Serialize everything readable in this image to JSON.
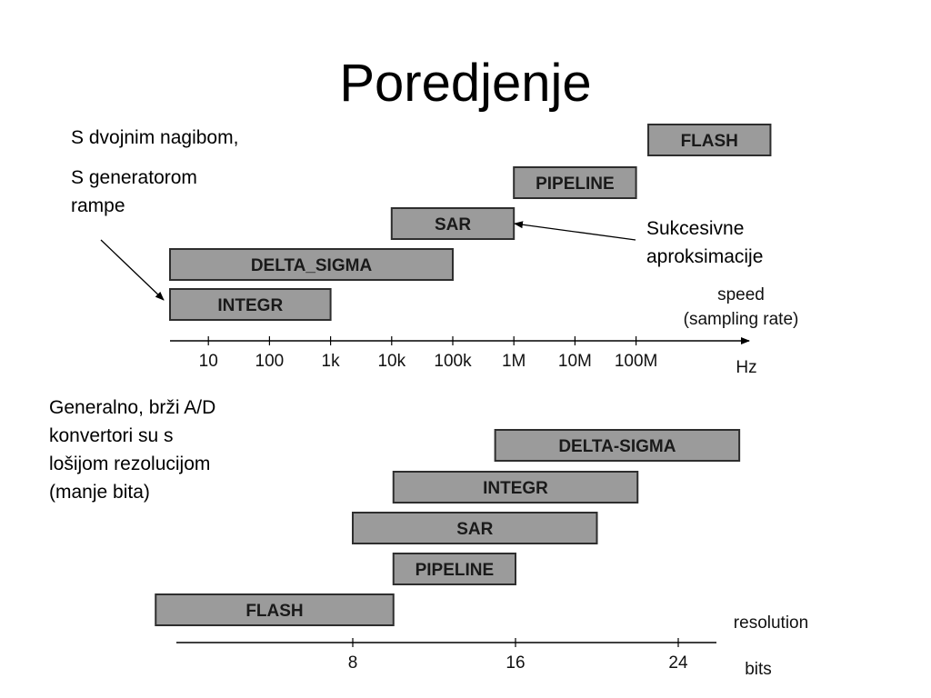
{
  "slide": {
    "title": "Poredjenje",
    "note_left_1": "S dvojnim nagibom,",
    "note_left_2a": "S generatorom",
    "note_left_2b": "rampe",
    "note_right_1": "Sukcesivne",
    "note_right_2": "aproksimacije",
    "note_bottom_1": "Generalno, brži A/D",
    "note_bottom_2": "konvertori su s",
    "note_bottom_3": "lošijom rezolucijom",
    "note_bottom_4": "(manje bita)"
  },
  "speed_chart": {
    "axis_label_1": "speed",
    "axis_label_2": "(sampling rate)",
    "unit": "Hz",
    "ticks": [
      "10",
      "100",
      "1k",
      "10k",
      "100k",
      "1M",
      "10M",
      "100M"
    ],
    "tick_exponents": [
      1,
      2,
      3,
      4,
      5,
      6,
      7,
      8
    ],
    "bars": [
      {
        "label": "FLASH",
        "from_exp": 8.2,
        "to_exp": 10.2
      },
      {
        "label": "PIPELINE",
        "from_exp": 6.0,
        "to_exp": 8.0
      },
      {
        "label": "SAR",
        "from_exp": 4.0,
        "to_exp": 6.0
      },
      {
        "label": "DELTA_SIGMA",
        "from_exp": 0.0,
        "to_exp": 5.0
      },
      {
        "label": "INTEGR",
        "from_exp": 0.0,
        "to_exp": 3.0
      }
    ]
  },
  "resolution_chart": {
    "axis_label": "resolution",
    "unit": "bits",
    "ticks": [
      "8",
      "16",
      "24"
    ],
    "tick_values": [
      8,
      16,
      24
    ],
    "bars": [
      {
        "label": "DELTA-SIGMA",
        "from_bits": 15,
        "to_bits": 27
      },
      {
        "label": "INTEGR",
        "from_bits": 10,
        "to_bits": 22
      },
      {
        "label": "SAR",
        "from_bits": 8,
        "to_bits": 20
      },
      {
        "label": "PIPELINE",
        "from_bits": 10,
        "to_bits": 16
      },
      {
        "label": "FLASH",
        "from_bits": -2,
        "to_bits": 10
      }
    ]
  }
}
